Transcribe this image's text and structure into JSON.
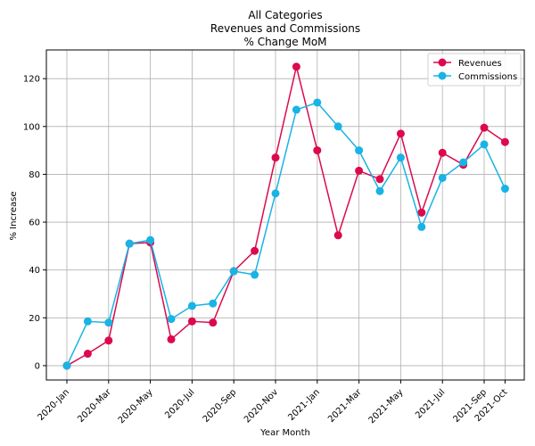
{
  "chart_data": {
    "type": "line",
    "title_lines": [
      "All Categories",
      "Revenues and Commissions",
      "% Change MoM"
    ],
    "xlabel": "Year Month",
    "ylabel": "% Increase",
    "x": [
      "2020-Jan",
      "2020-Feb",
      "2020-Mar",
      "2020-Apr",
      "2020-May",
      "2020-Jun",
      "2020-Jul",
      "2020-Aug",
      "2020-Sep",
      "2020-Oct",
      "2020-Nov",
      "2020-Dec",
      "2021-Jan",
      "2021-Feb",
      "2021-Mar",
      "2021-Apr",
      "2021-May",
      "2021-Jun",
      "2021-Jul",
      "2021-Aug",
      "2021-Sep",
      "2021-Oct"
    ],
    "x_ticks": [
      "2020-Jan",
      "2020-Mar",
      "2020-May",
      "2020-Jul",
      "2020-Sep",
      "2020-Nov",
      "2021-Jan",
      "2021-Mar",
      "2021-May",
      "2021-Jul",
      "2021-Sep",
      "2021-Oct"
    ],
    "y_ticks": [
      0,
      20,
      40,
      60,
      80,
      100,
      120
    ],
    "ylim": [
      -6,
      132
    ],
    "grid": true,
    "legend_position": "top-right",
    "series": [
      {
        "name": "Revenues",
        "color": "#dc0a4d",
        "values": [
          0,
          5,
          10.5,
          51,
          51.5,
          11,
          18.5,
          18,
          39.5,
          48,
          87,
          125,
          90,
          54.5,
          81.5,
          78,
          97,
          64,
          89,
          84,
          99.5,
          93.5
        ]
      },
      {
        "name": "Commissions",
        "color": "#19b3e6",
        "values": [
          0,
          18.5,
          18,
          51,
          52.5,
          19.5,
          25,
          26,
          39.5,
          38,
          72,
          107,
          110,
          100,
          90,
          73,
          87,
          58,
          78.5,
          85,
          92.5,
          74
        ]
      }
    ]
  }
}
